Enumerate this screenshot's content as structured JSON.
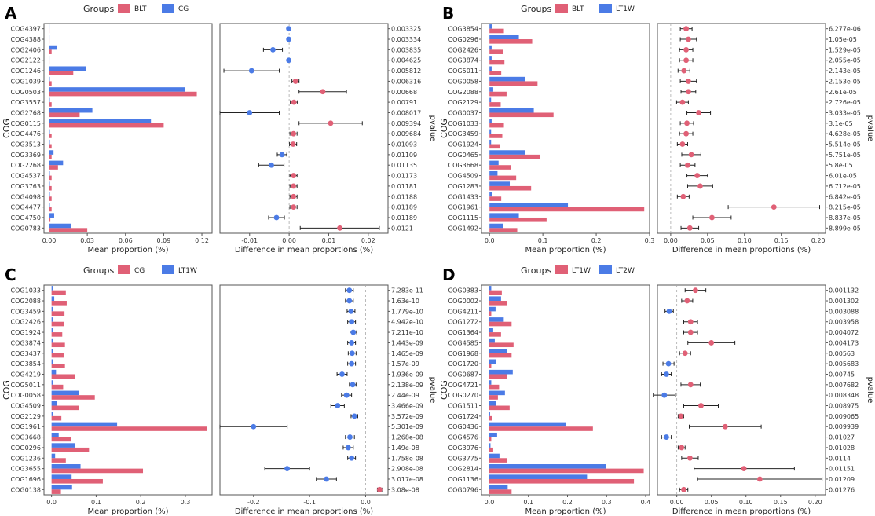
{
  "colors": {
    "red": "#e06076",
    "blue": "#4b7be6",
    "frame": "#555555",
    "tick_text": "#333333",
    "errorbar": "#222222"
  },
  "chart_data": [
    {
      "panel": "A",
      "type": "bar",
      "legend_title": "Groups",
      "groups": [
        "BLT",
        "CG"
      ],
      "group_colors": [
        "red",
        "blue"
      ],
      "ylabel": "COG",
      "bar_xlabel": "Mean proportion (%)",
      "diff_xlabel": "Difference in mean proportions (%)",
      "pvalue_label": "pvalue",
      "bar_xlim": [
        -0.004,
        0.128
      ],
      "bar_ticks": [
        0.0,
        0.03,
        0.06,
        0.09,
        0.12
      ],
      "bar_tick_labels": [
        "0.00",
        "0.03",
        "0.06",
        "0.09",
        "0.12"
      ],
      "diff_xlim": [
        -0.0175,
        0.025
      ],
      "diff_ticks": [
        -0.01,
        0.0,
        0.01,
        0.02
      ],
      "diff_tick_labels": [
        "-0.01",
        "0.00",
        "0.01",
        "0.02"
      ],
      "categories": [
        "COG4397",
        "COG4388",
        "COG2406",
        "COG2122",
        "COG1246",
        "COG1039",
        "COG0503",
        "COG3557",
        "COG2768",
        "COG0115",
        "COG4476",
        "COG3513",
        "COG3369",
        "COG2268",
        "COG4537",
        "COG3763",
        "COG4098",
        "COG4477",
        "COG4750",
        "COG0783"
      ],
      "values_g1": [
        0.0003,
        0.0003,
        0.002,
        0.0003,
        0.019,
        0.002,
        0.116,
        0.002,
        0.024,
        0.09,
        0.002,
        0.002,
        0.002,
        0.007,
        0.002,
        0.002,
        0.002,
        0.002,
        0.001,
        0.03
      ],
      "values_g2": [
        0.0003,
        0.0003,
        0.006,
        0.0003,
        0.029,
        0.0006,
        0.107,
        0.0006,
        0.034,
        0.08,
        0.0006,
        0.0006,
        0.0035,
        0.011,
        0.0006,
        0.0006,
        0.0006,
        0.0006,
        0.004,
        0.017
      ],
      "diff": [
        -0.0001,
        -0.0001,
        -0.0041,
        -0.0001,
        -0.0095,
        0.0016,
        0.0085,
        0.0012,
        -0.01,
        0.0105,
        0.0011,
        0.001,
        -0.0018,
        -0.0045,
        0.0011,
        0.0011,
        0.0011,
        0.0011,
        -0.0032,
        0.0128
      ],
      "ci_low": [
        -0.0003,
        -0.0003,
        -0.0065,
        -0.0003,
        -0.0165,
        0.0007,
        0.0025,
        0.0003,
        -0.0175,
        0.0025,
        0.0002,
        0.0001,
        -0.003,
        -0.0077,
        0.0002,
        0.0002,
        0.0002,
        0.0002,
        -0.0052,
        0.0028
      ],
      "ci_high": [
        0.0001,
        0.0001,
        -0.0017,
        0.0001,
        -0.0025,
        0.0025,
        0.0145,
        0.0021,
        -0.0025,
        0.0185,
        0.002,
        0.0019,
        -0.0006,
        -0.0013,
        0.002,
        0.002,
        0.002,
        0.002,
        -0.0012,
        0.0228
      ],
      "pvalues": [
        "0.003325",
        "0.003334",
        "0.003835",
        "0.004625",
        "0.005812",
        "0.006316",
        "0.00668",
        "0.00791",
        "0.008017",
        "0.009394",
        "0.009684",
        "0.01093",
        "0.01109",
        "0.01135",
        "0.01173",
        "0.01181",
        "0.01188",
        "0.01189",
        "0.01189",
        "0.0121"
      ]
    },
    {
      "panel": "B",
      "type": "bar",
      "legend_title": "Groups",
      "groups": [
        "BLT",
        "LT1W"
      ],
      "group_colors": [
        "red",
        "blue"
      ],
      "ylabel": "COG",
      "bar_xlabel": "Mean proportion (%)",
      "diff_xlabel": "Difference in mean proportions (%)",
      "pvalue_label": "pvalue",
      "bar_xlim": [
        -0.015,
        0.3
      ],
      "bar_ticks": [
        0.0,
        0.1,
        0.2,
        0.3
      ],
      "bar_tick_labels": [
        "0.0",
        "0.1",
        "0.2",
        "0.3"
      ],
      "diff_xlim": [
        -0.018,
        0.21
      ],
      "diff_ticks": [
        0.0,
        0.05,
        0.1,
        0.15,
        0.2
      ],
      "diff_tick_labels": [
        "0.00",
        "0.05",
        "0.10",
        "0.15",
        "0.20"
      ],
      "categories": [
        "COG3854",
        "COG0296",
        "COG2426",
        "COG3874",
        "COG5011",
        "COG0058",
        "COG2088",
        "COG2129",
        "COG0037",
        "COG1033",
        "COG3459",
        "COG1924",
        "COG0465",
        "COG3668",
        "COG4509",
        "COG1283",
        "COG1433",
        "COG1961",
        "COG1115",
        "COG1492"
      ],
      "values_g1": [
        0.027,
        0.08,
        0.026,
        0.028,
        0.022,
        0.09,
        0.032,
        0.021,
        0.12,
        0.027,
        0.024,
        0.019,
        0.095,
        0.04,
        0.05,
        0.078,
        0.022,
        0.29,
        0.107,
        0.052
      ],
      "values_g2": [
        0.005,
        0.055,
        0.004,
        0.004,
        0.004,
        0.066,
        0.007,
        0.003,
        0.083,
        0.004,
        0.003,
        0.003,
        0.067,
        0.017,
        0.015,
        0.038,
        0.005,
        0.147,
        0.055,
        0.025
      ],
      "diff": [
        0.021,
        0.024,
        0.021,
        0.021,
        0.018,
        0.024,
        0.024,
        0.016,
        0.038,
        0.022,
        0.021,
        0.016,
        0.028,
        0.023,
        0.036,
        0.04,
        0.017,
        0.14,
        0.056,
        0.026
      ],
      "ci_low": [
        0.013,
        0.013,
        0.012,
        0.012,
        0.01,
        0.013,
        0.014,
        0.008,
        0.022,
        0.013,
        0.012,
        0.009,
        0.015,
        0.013,
        0.022,
        0.023,
        0.009,
        0.078,
        0.03,
        0.014
      ],
      "ci_high": [
        0.029,
        0.035,
        0.03,
        0.03,
        0.026,
        0.035,
        0.034,
        0.024,
        0.054,
        0.031,
        0.03,
        0.023,
        0.041,
        0.033,
        0.05,
        0.057,
        0.025,
        0.202,
        0.082,
        0.038
      ],
      "pvalues": [
        "6.277e-06",
        "1.05e-05",
        "1.529e-05",
        "2.055e-05",
        "2.143e-05",
        "2.153e-05",
        "2.61e-05",
        "2.726e-05",
        "3.033e-05",
        "3.1e-05",
        "4.628e-05",
        "5.514e-05",
        "5.751e-05",
        "5.8e-05",
        "6.01e-05",
        "6.712e-05",
        "6.842e-05",
        "8.215e-05",
        "8.837e-05",
        "8.899e-05"
      ]
    },
    {
      "panel": "C",
      "type": "bar",
      "legend_title": "Groups",
      "groups": [
        "CG",
        "LT1W"
      ],
      "group_colors": [
        "red",
        "blue"
      ],
      "ylabel": "COG",
      "bar_xlabel": "Mean proportion (%)",
      "diff_xlabel": "Difference in mean proportions (%)",
      "pvalue_label": "pvalue",
      "bar_xlim": [
        -0.017,
        0.36
      ],
      "bar_ticks": [
        0.0,
        0.1,
        0.2,
        0.3
      ],
      "bar_tick_labels": [
        "0.0",
        "0.1",
        "0.2",
        "0.3"
      ],
      "diff_xlim": [
        -0.26,
        0.04
      ],
      "diff_ticks": [
        -0.2,
        -0.1,
        0.0
      ],
      "diff_tick_labels": [
        "-0.2",
        "-0.1",
        "0.0"
      ],
      "categories": [
        "COG1033",
        "COG2088",
        "COG3459",
        "COG2426",
        "COG1924",
        "COG3874",
        "COG3437",
        "COG3854",
        "COG4219",
        "COG5011",
        "COG0058",
        "COG4509",
        "COG2129",
        "COG1961",
        "COG3668",
        "COG0296",
        "COG1236",
        "COG3655",
        "COG1696",
        "COG0138"
      ],
      "values_g1": [
        0.032,
        0.034,
        0.029,
        0.028,
        0.024,
        0.03,
        0.027,
        0.03,
        0.052,
        0.026,
        0.097,
        0.062,
        0.022,
        0.348,
        0.044,
        0.084,
        0.032,
        0.205,
        0.115,
        0.021
      ],
      "values_g2": [
        0.004,
        0.006,
        0.004,
        0.004,
        0.003,
        0.004,
        0.004,
        0.004,
        0.01,
        0.004,
        0.062,
        0.012,
        0.003,
        0.147,
        0.016,
        0.052,
        0.008,
        0.065,
        0.045,
        0.046
      ],
      "diff": [
        -0.029,
        -0.029,
        -0.026,
        -0.025,
        -0.022,
        -0.025,
        -0.024,
        -0.025,
        -0.042,
        -0.023,
        -0.034,
        -0.05,
        -0.02,
        -0.2,
        -0.028,
        -0.031,
        -0.025,
        -0.14,
        -0.07,
        0.025
      ],
      "ci_low": [
        -0.036,
        -0.036,
        -0.033,
        -0.032,
        -0.028,
        -0.032,
        -0.031,
        -0.032,
        -0.051,
        -0.029,
        -0.043,
        -0.062,
        -0.026,
        -0.26,
        -0.036,
        -0.04,
        -0.032,
        -0.18,
        -0.088,
        0.021
      ],
      "ci_high": [
        -0.022,
        -0.022,
        -0.019,
        -0.018,
        -0.016,
        -0.018,
        -0.017,
        -0.018,
        -0.033,
        -0.017,
        -0.025,
        -0.038,
        -0.014,
        -0.14,
        -0.02,
        -0.022,
        -0.018,
        -0.1,
        -0.052,
        0.029
      ],
      "pvalues": [
        "7.283e-11",
        "1.63e-10",
        "1.779e-10",
        "4.942e-10",
        "7.211e-10",
        "1.443e-09",
        "1.465e-09",
        "1.57e-09",
        "1.936e-09",
        "2.138e-09",
        "2.44e-09",
        "3.466e-09",
        "3.572e-09",
        "5.301e-09",
        "1.268e-08",
        "1.49e-08",
        "1.758e-08",
        "2.908e-08",
        "3.017e-08",
        "3.08e-08"
      ]
    },
    {
      "panel": "D",
      "type": "bar",
      "legend_title": "Groups",
      "groups": [
        "LT1W",
        "LT2W"
      ],
      "group_colors": [
        "red",
        "blue"
      ],
      "ylabel": "COG",
      "bar_xlabel": "Mean proportion (%)",
      "diff_xlabel": "Difference in mean proportions (%)",
      "pvalue_label": "pvalue",
      "bar_xlim": [
        -0.02,
        0.41
      ],
      "bar_ticks": [
        0.0,
        0.1,
        0.2,
        0.3,
        0.4
      ],
      "bar_tick_labels": [
        "0.0",
        "0.1",
        "0.2",
        "0.3",
        "0.4"
      ],
      "diff_xlim": [
        -0.028,
        0.215
      ],
      "diff_ticks": [
        0.0,
        0.05,
        0.1,
        0.15,
        0.2
      ],
      "diff_tick_labels": [
        "0.00",
        "0.05",
        "0.10",
        "0.15",
        "0.20"
      ],
      "categories": [
        "COG0383",
        "COG0002",
        "COG4211",
        "COG1272",
        "COG1364",
        "COG4585",
        "COG1968",
        "COG1720",
        "COG0687",
        "COG4721",
        "COG0270",
        "COG1511",
        "COG1724",
        "COG0436",
        "COG4576",
        "COG3976",
        "COG3775",
        "COG2814",
        "COG1136",
        "COG0796"
      ],
      "values_g1": [
        0.032,
        0.045,
        0.005,
        0.057,
        0.03,
        0.062,
        0.057,
        0.005,
        0.045,
        0.025,
        0.022,
        0.052,
        0.008,
        0.265,
        0.005,
        0.01,
        0.045,
        0.395,
        0.37,
        0.057
      ],
      "values_g2": [
        0.005,
        0.03,
        0.016,
        0.037,
        0.01,
        0.014,
        0.045,
        0.017,
        0.06,
        0.005,
        0.04,
        0.018,
        0.002,
        0.195,
        0.02,
        0.003,
        0.026,
        0.298,
        0.25,
        0.047
      ],
      "diff": [
        0.027,
        0.015,
        -0.011,
        0.02,
        0.02,
        0.05,
        0.012,
        -0.012,
        -0.015,
        0.02,
        -0.018,
        0.035,
        0.006,
        0.07,
        -0.015,
        0.007,
        0.019,
        0.097,
        0.12,
        0.01
      ],
      "ci_low": [
        0.012,
        0.007,
        -0.017,
        0.01,
        0.01,
        0.016,
        0.004,
        -0.02,
        -0.022,
        0.006,
        -0.034,
        0.01,
        0.002,
        0.018,
        -0.022,
        0.002,
        0.007,
        0.025,
        0.03,
        0.004
      ],
      "ci_high": [
        0.042,
        0.023,
        -0.005,
        0.03,
        0.03,
        0.084,
        0.02,
        -0.004,
        -0.008,
        0.034,
        -0.002,
        0.06,
        0.01,
        0.122,
        -0.008,
        0.012,
        0.031,
        0.17,
        0.21,
        0.016
      ],
      "pvalues": [
        "0.001132",
        "0.001302",
        "0.003088",
        "0.003958",
        "0.004072",
        "0.004173",
        "0.00563",
        "0.005683",
        "0.00745",
        "0.007682",
        "0.008348",
        "0.008975",
        "0.009065",
        "0.009939",
        "0.01027",
        "0.01028",
        "0.0114",
        "0.01151",
        "0.01209",
        "0.01276"
      ]
    }
  ]
}
